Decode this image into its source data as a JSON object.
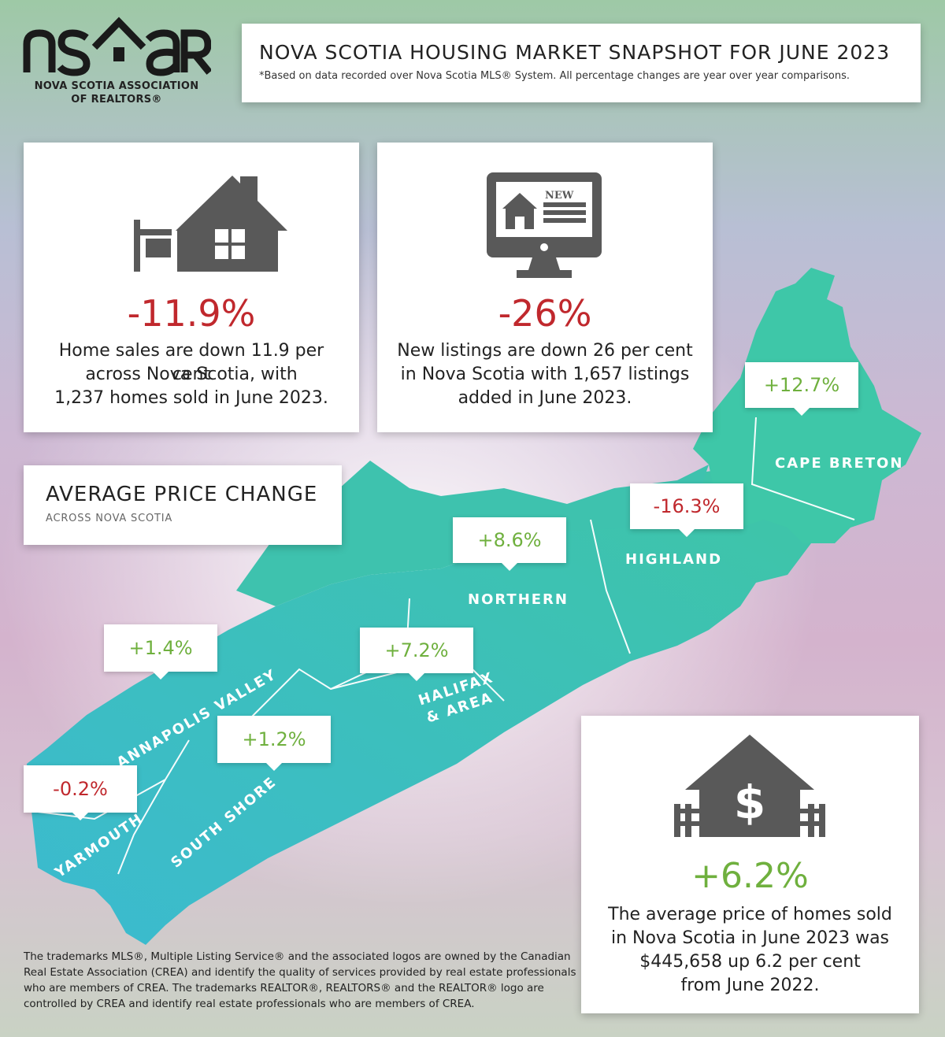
{
  "logo": {
    "wordmark": "ns^aR",
    "line1": "NOVA SCOTIA ASSOCIATION",
    "line2": "OF REALTORS®"
  },
  "header": {
    "title": "NOVA SCOTIA HOUSING MARKET SNAPSHOT FOR JUNE 2023",
    "note": "*Based on data recorded over Nova Scotia MLS® System. All percentage changes are year over year comparisons."
  },
  "stats": {
    "sales": {
      "icon": "house-for-sale-icon",
      "value": "-11.9%",
      "desc1": "Home sales are down 11.9 per cent",
      "desc2": "across Nova Scotia, with",
      "desc3": "1,237 homes sold in June 2023."
    },
    "listings": {
      "icon": "computer-new-listing-icon",
      "value": "-26%",
      "desc1": "New listings are down 26 per cent",
      "desc2": "in Nova Scotia with 1,657 listings",
      "desc3": "added in June 2023.",
      "badge": "NEW"
    }
  },
  "average_price_change": {
    "title": "AVERAGE PRICE CHANGE",
    "subtitle": "ACROSS NOVA SCOTIA"
  },
  "regions": [
    {
      "name": "CAPE BRETON",
      "change": "+12.7%",
      "trend": "up"
    },
    {
      "name": "HIGHLAND",
      "change": "-16.3%",
      "trend": "down"
    },
    {
      "name": "NORTHERN",
      "change": "+8.6%",
      "trend": "up"
    },
    {
      "name": "HALIFAX & AREA",
      "line1": "HALIFAX",
      "line2": "& AREA",
      "change": "+7.2%",
      "trend": "up"
    },
    {
      "name": "ANNAPOLIS VALLEY",
      "change": "+1.4%",
      "trend": "up"
    },
    {
      "name": "SOUTH SHORE",
      "change": "+1.2%",
      "trend": "up"
    },
    {
      "name": "YARMOUTH",
      "change": "-0.2%",
      "trend": "down"
    }
  ],
  "average_price": {
    "icon": "house-dollar-icon",
    "value": "+6.2%",
    "desc1": "The average price of homes sold",
    "desc2": "in Nova Scotia in June 2023 was",
    "desc3": "$445,658 up 6.2 per cent",
    "desc4": "from June 2022."
  },
  "footer": {
    "text": "The trademarks MLS®, Multiple Listing Service® and the associated logos are owned by the Canadian Real Estate Association (CREA) and identify the quality of services provided by real estate professionals who are members of CREA. The trademarks REALTOR®, REALTORS® and the REALTOR® logo are controlled by CREA and identify real estate professionals who are members of CREA."
  },
  "colors": {
    "map_teal": "#3cbfb7",
    "positive": "#6fb03e",
    "negative": "#c0282d",
    "icon_gray": "#595959"
  }
}
